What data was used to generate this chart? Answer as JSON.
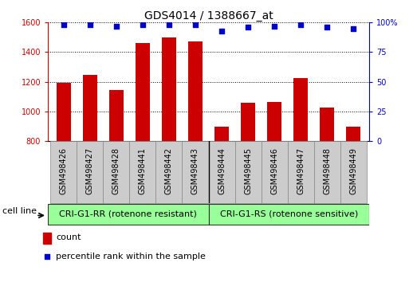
{
  "title": "GDS4014 / 1388667_at",
  "samples": [
    "GSM498426",
    "GSM498427",
    "GSM498428",
    "GSM498441",
    "GSM498442",
    "GSM498443",
    "GSM498444",
    "GSM498445",
    "GSM498446",
    "GSM498447",
    "GSM498448",
    "GSM498449"
  ],
  "counts": [
    1195,
    1245,
    1145,
    1460,
    1500,
    1475,
    895,
    1060,
    1065,
    1225,
    1025,
    898
  ],
  "percentile_ranks": [
    98,
    98,
    97,
    98,
    98,
    98,
    93,
    96,
    97,
    98,
    96,
    95
  ],
  "ylim_left": [
    800,
    1600
  ],
  "ylim_right": [
    0,
    100
  ],
  "yticks_left": [
    800,
    1000,
    1200,
    1400,
    1600
  ],
  "yticks_right": [
    0,
    25,
    50,
    75,
    100
  ],
  "bar_color": "#cc0000",
  "dot_color": "#0000cc",
  "bar_width": 0.55,
  "group1_label": "CRI-G1-RR (rotenone resistant)",
  "group2_label": "CRI-G1-RS (rotenone sensitive)",
  "group1_count": 6,
  "group2_count": 6,
  "cell_line_label": "cell line",
  "legend_count_label": "count",
  "legend_percentile_label": "percentile rank within the sample",
  "group_bg_color": "#99ff99",
  "tick_area_bg_color": "#cccccc",
  "plot_bg_color": "#ffffff",
  "title_fontsize": 10,
  "tick_fontsize": 7,
  "legend_fontsize": 8,
  "group_fontsize": 8
}
